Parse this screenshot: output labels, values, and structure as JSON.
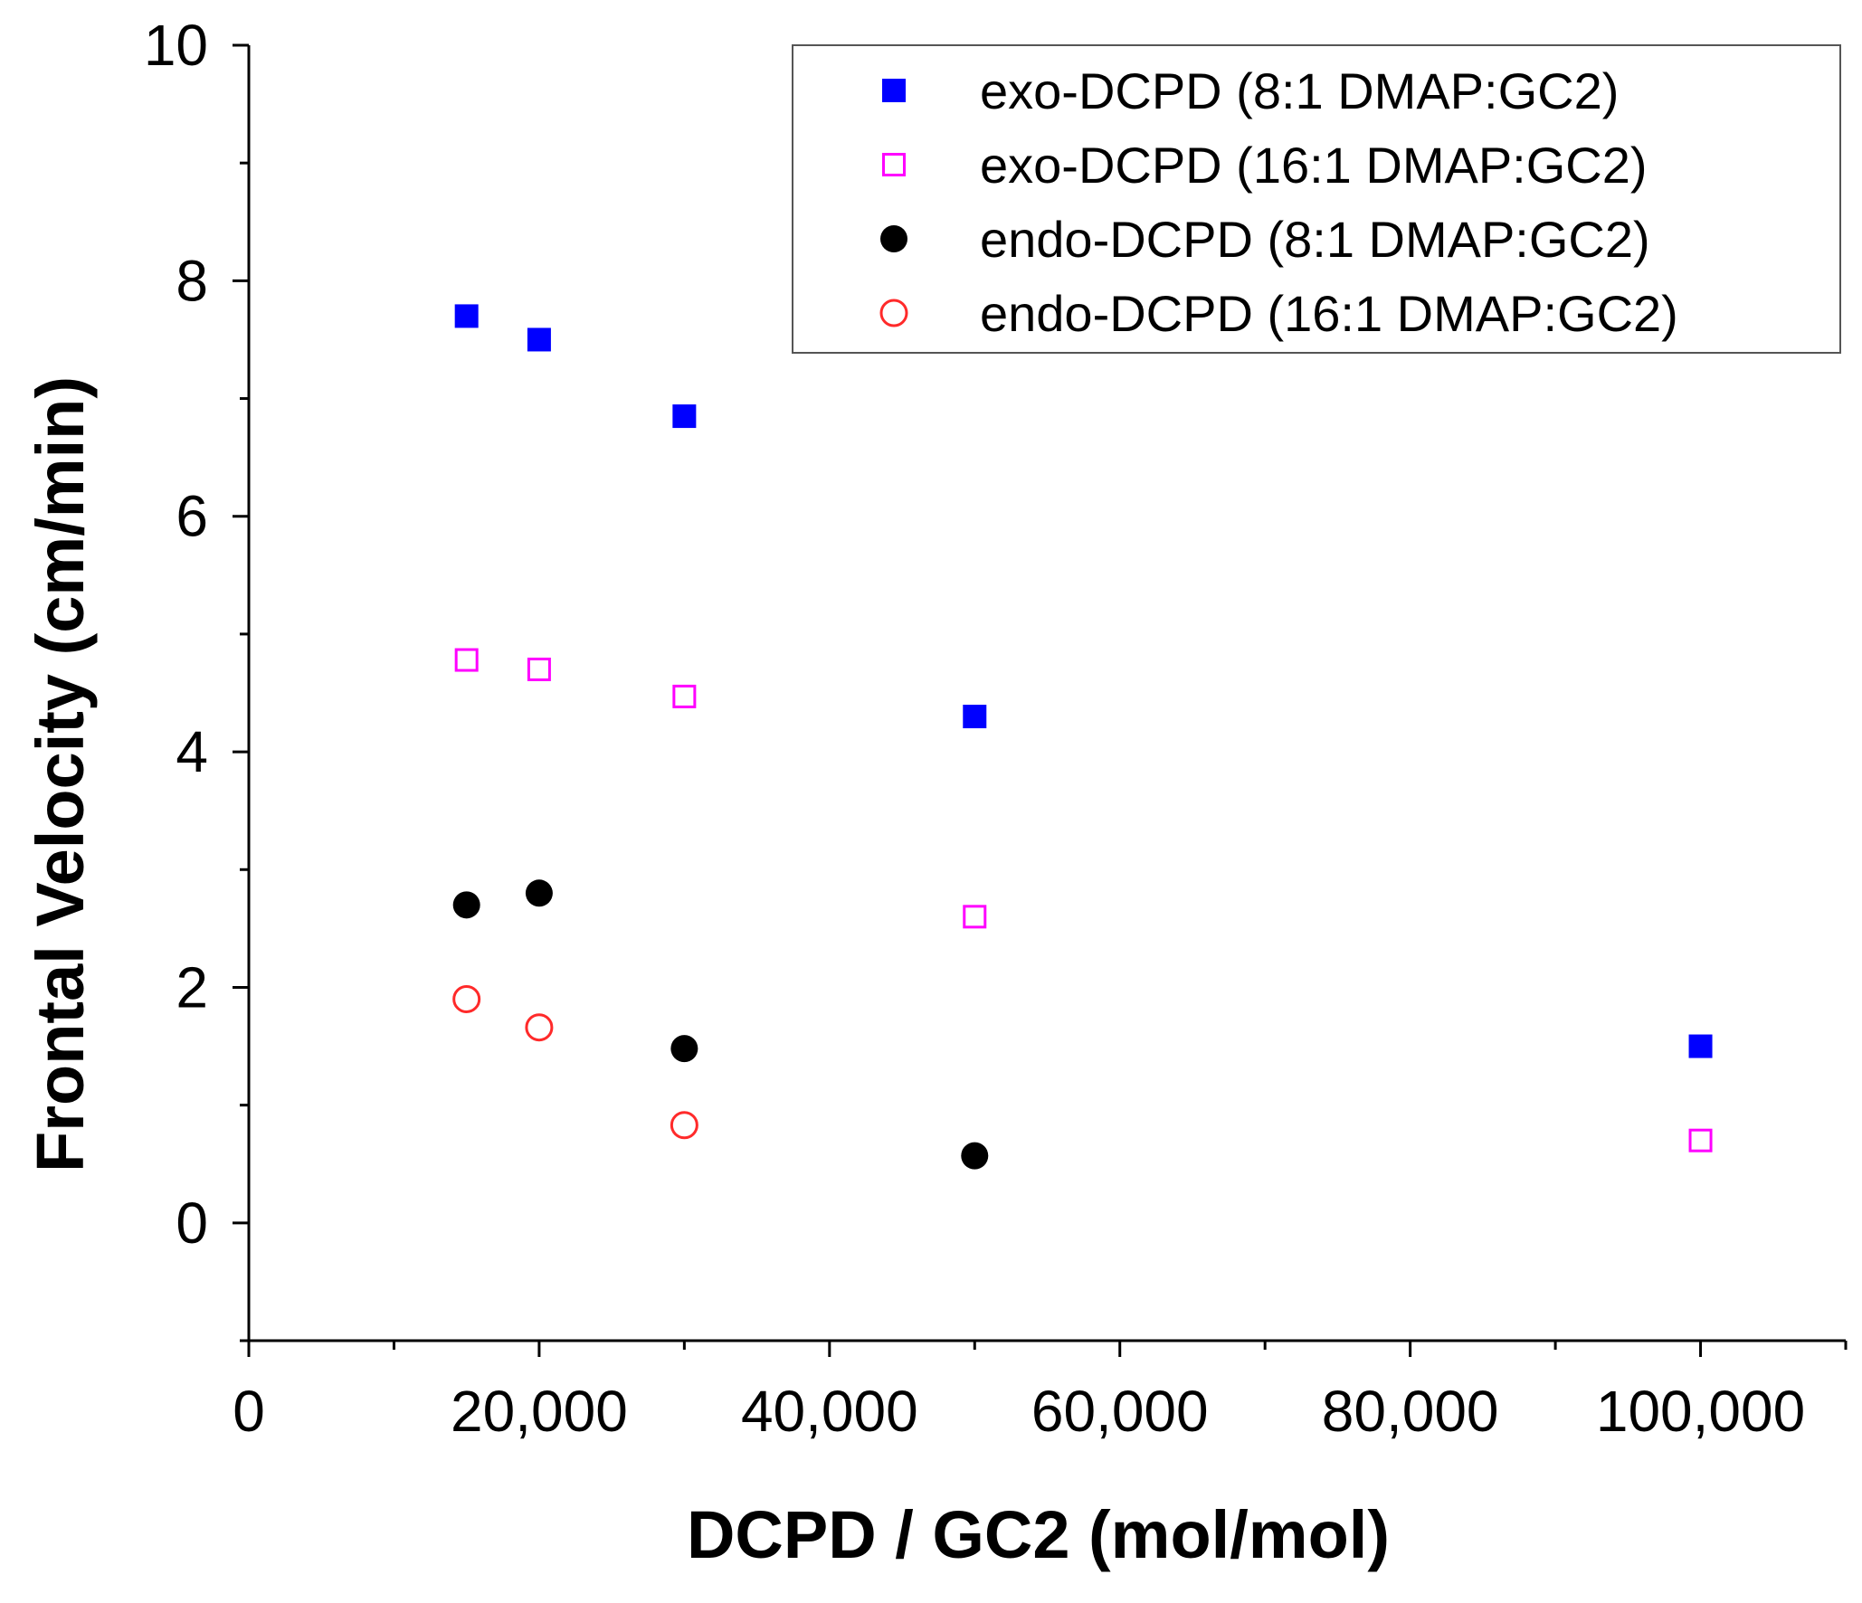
{
  "chart_data": {
    "type": "scatter",
    "title": "",
    "xlabel": "DCPD / GC2 (mol/mol)",
    "ylabel": "Frontal Velocity (cm/min)",
    "xlim": [
      0,
      110000
    ],
    "ylim": [
      -1,
      10
    ],
    "x_ticks": [
      0,
      20000,
      40000,
      60000,
      80000,
      100000
    ],
    "x_tick_labels": [
      "0",
      "20,000",
      "40,000",
      "60,000",
      "80,000",
      "100,000"
    ],
    "x_minor_step": 10000,
    "y_ticks": [
      0,
      2,
      4,
      6,
      8,
      10
    ],
    "y_tick_labels": [
      "0",
      "2",
      "4",
      "6",
      "8",
      "10"
    ],
    "y_minor_step": 1,
    "grid": false,
    "legend_position": "top-right",
    "series": [
      {
        "name": "exo-DCPD (8:1 DMAP:GC2)",
        "marker": "square-filled",
        "color": "#0000ff",
        "points": [
          [
            15000,
            7.7
          ],
          [
            20000,
            7.5
          ],
          [
            30000,
            6.85
          ],
          [
            50000,
            4.3
          ],
          [
            100000,
            1.5
          ]
        ]
      },
      {
        "name": "exo-DCPD (16:1 DMAP:GC2)",
        "marker": "square-open",
        "color": "#ff00ff",
        "points": [
          [
            15000,
            4.78
          ],
          [
            20000,
            4.7
          ],
          [
            30000,
            4.47
          ],
          [
            50000,
            2.6
          ],
          [
            100000,
            0.7
          ]
        ]
      },
      {
        "name": "endo-DCPD (8:1 DMAP:GC2)",
        "marker": "circle-filled",
        "color": "#000000",
        "points": [
          [
            15000,
            2.7
          ],
          [
            20000,
            2.8
          ],
          [
            30000,
            1.48
          ],
          [
            50000,
            0.57
          ]
        ]
      },
      {
        "name": "endo-DCPD (16:1 DMAP:GC2)",
        "marker": "circle-open",
        "color": "#ff2a2a",
        "points": [
          [
            15000,
            1.9
          ],
          [
            20000,
            1.66
          ],
          [
            30000,
            0.83
          ]
        ]
      }
    ]
  }
}
